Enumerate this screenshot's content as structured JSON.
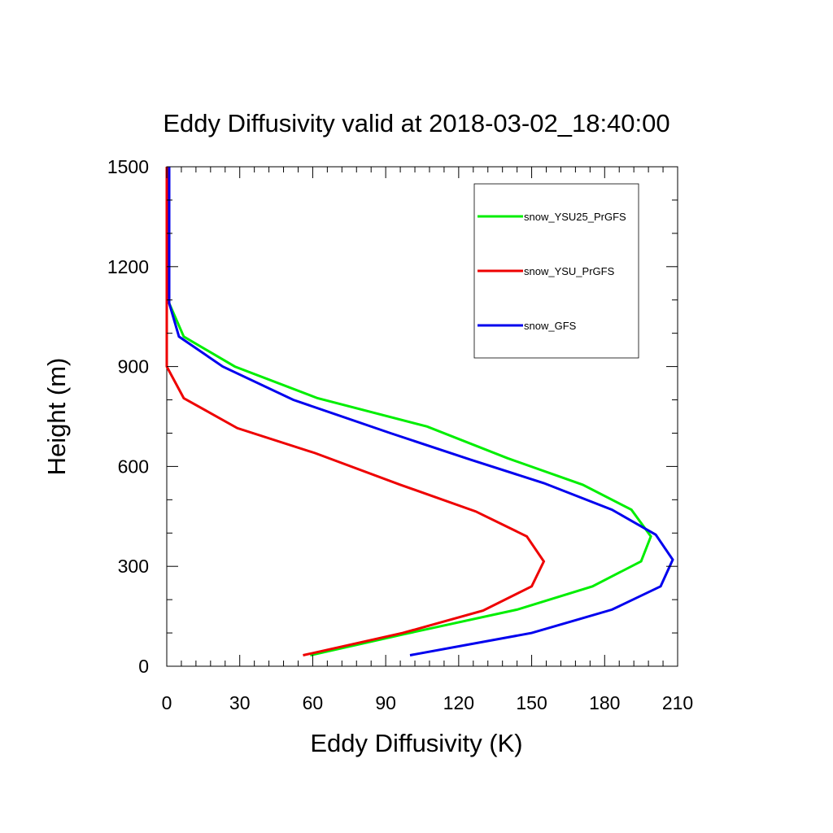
{
  "chart_data": {
    "type": "line",
    "title": "Eddy Diffusivity valid at 2018-03-02_18:40:00",
    "xlabel": "Eddy Diffusivity (K)",
    "ylabel": "Height (m)",
    "xlim": [
      0,
      210
    ],
    "ylim": [
      0,
      1500
    ],
    "xticks": [
      0,
      30,
      60,
      90,
      120,
      150,
      180,
      210
    ],
    "yticks": [
      0,
      300,
      600,
      900,
      1200,
      1500
    ],
    "xtick_labels": [
      "0",
      "30",
      "60",
      "90",
      "120",
      "150",
      "180",
      "210"
    ],
    "ytick_labels": [
      "0",
      "300",
      "600",
      "900",
      "1200",
      "1500"
    ],
    "grid": false,
    "legend_position": "top-right",
    "series": [
      {
        "name": "snow_YSU25_PrGFS",
        "color": "#00ee00",
        "points": [
          [
            59,
            33
          ],
          [
            98,
            97
          ],
          [
            144,
            170
          ],
          [
            175,
            240
          ],
          [
            195,
            315
          ],
          [
            199,
            390
          ],
          [
            191,
            470
          ],
          [
            171,
            545
          ],
          [
            140,
            625
          ],
          [
            107,
            720
          ],
          [
            62,
            805
          ],
          [
            28,
            900
          ],
          [
            7,
            990
          ],
          [
            1,
            1090
          ],
          [
            1,
            1200
          ],
          [
            1,
            1350
          ],
          [
            1,
            1500
          ]
        ]
      },
      {
        "name": "snow_YSU_PrGFS",
        "color": "#ee0000",
        "points": [
          [
            56,
            33
          ],
          [
            97,
            100
          ],
          [
            130,
            167
          ],
          [
            150,
            240
          ],
          [
            155,
            315
          ],
          [
            148,
            390
          ],
          [
            127,
            465
          ],
          [
            96,
            545
          ],
          [
            61,
            640
          ],
          [
            29,
            715
          ],
          [
            7,
            805
          ],
          [
            0,
            900
          ],
          [
            0,
            1000
          ],
          [
            0,
            1100
          ],
          [
            0,
            1200
          ],
          [
            0,
            1350
          ],
          [
            0,
            1500
          ]
        ]
      },
      {
        "name": "snow_GFS",
        "color": "#0000ee",
        "points": [
          [
            100,
            33
          ],
          [
            150,
            100
          ],
          [
            183,
            170
          ],
          [
            203,
            240
          ],
          [
            208,
            320
          ],
          [
            201,
            395
          ],
          [
            183,
            470
          ],
          [
            155,
            550
          ],
          [
            125,
            620
          ],
          [
            92,
            700
          ],
          [
            52,
            800
          ],
          [
            23,
            900
          ],
          [
            5,
            990
          ],
          [
            1,
            1090
          ],
          [
            1,
            1200
          ],
          [
            1,
            1350
          ],
          [
            1,
            1500
          ]
        ]
      }
    ]
  }
}
